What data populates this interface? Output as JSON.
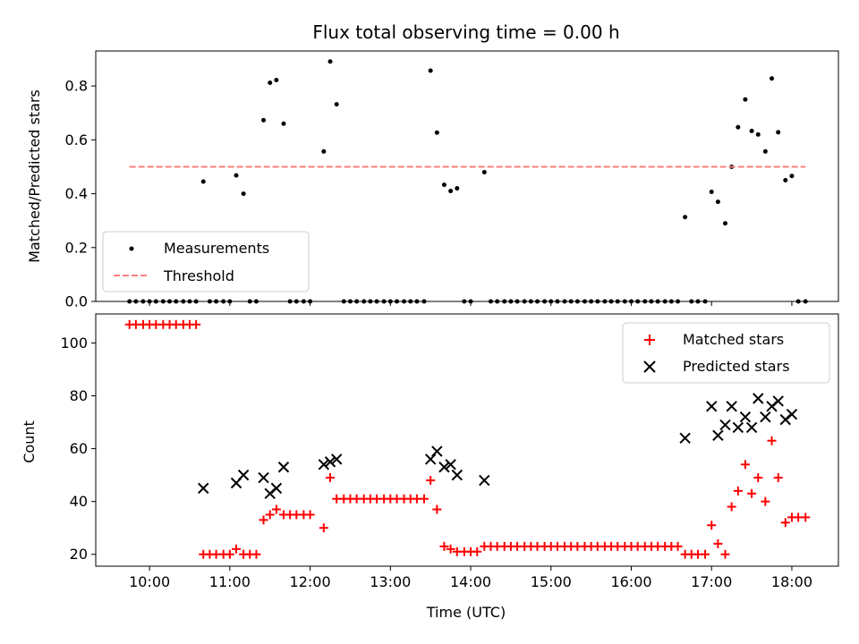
{
  "chart_data": [
    {
      "type": "scatter",
      "title": "Flux total observing time = 0.00 h",
      "xlabel": "",
      "ylabel": "Matched/Predicted stars",
      "xlim": [
        9.33,
        18.58
      ],
      "ylim": [
        0,
        0.93
      ],
      "yticks": [
        0.0,
        0.2,
        0.4,
        0.6,
        0.8
      ],
      "ytick_labels": [
        "0.0",
        "0.2",
        "0.4",
        "0.6",
        "0.8"
      ],
      "legend_position": "lower-left",
      "series": [
        {
          "name": "Measurements",
          "marker": "dot",
          "color": "#000000",
          "points": [
            [
              9.75,
              0
            ],
            [
              9.83,
              0
            ],
            [
              9.92,
              0
            ],
            [
              10.0,
              0
            ],
            [
              10.08,
              0
            ],
            [
              10.17,
              0
            ],
            [
              10.25,
              0
            ],
            [
              10.33,
              0
            ],
            [
              10.42,
              0
            ],
            [
              10.5,
              0
            ],
            [
              10.58,
              0
            ],
            [
              10.67,
              0.445
            ],
            [
              10.75,
              0
            ],
            [
              10.83,
              0
            ],
            [
              10.92,
              0
            ],
            [
              11.0,
              0
            ],
            [
              11.08,
              0.468
            ],
            [
              11.17,
              0.4
            ],
            [
              11.25,
              0
            ],
            [
              11.33,
              0
            ],
            [
              11.42,
              0.673
            ],
            [
              11.5,
              0.812
            ],
            [
              11.58,
              0.822
            ],
            [
              11.67,
              0.66
            ],
            [
              11.75,
              0
            ],
            [
              11.83,
              0
            ],
            [
              11.92,
              0
            ],
            [
              12.0,
              0
            ],
            [
              12.17,
              0.557
            ],
            [
              12.25,
              0.891
            ],
            [
              12.33,
              0.732
            ],
            [
              12.42,
              0
            ],
            [
              12.5,
              0
            ],
            [
              12.58,
              0
            ],
            [
              12.67,
              0
            ],
            [
              12.75,
              0
            ],
            [
              12.83,
              0
            ],
            [
              12.92,
              0
            ],
            [
              13.0,
              0
            ],
            [
              13.08,
              0
            ],
            [
              13.17,
              0
            ],
            [
              13.25,
              0
            ],
            [
              13.33,
              0
            ],
            [
              13.42,
              0
            ],
            [
              13.5,
              0.857
            ],
            [
              13.58,
              0.627
            ],
            [
              13.67,
              0.433
            ],
            [
              13.75,
              0.41
            ],
            [
              13.83,
              0.42
            ],
            [
              13.92,
              0
            ],
            [
              14.0,
              0
            ],
            [
              14.17,
              0.48
            ],
            [
              14.25,
              0
            ],
            [
              14.33,
              0
            ],
            [
              14.42,
              0
            ],
            [
              14.5,
              0
            ],
            [
              14.58,
              0
            ],
            [
              14.67,
              0
            ],
            [
              14.75,
              0
            ],
            [
              14.83,
              0
            ],
            [
              14.92,
              0
            ],
            [
              15.0,
              0
            ],
            [
              15.08,
              0
            ],
            [
              15.17,
              0
            ],
            [
              15.25,
              0
            ],
            [
              15.33,
              0
            ],
            [
              15.42,
              0
            ],
            [
              15.5,
              0
            ],
            [
              15.58,
              0
            ],
            [
              15.67,
              0
            ],
            [
              15.75,
              0
            ],
            [
              15.83,
              0
            ],
            [
              15.92,
              0
            ],
            [
              16.0,
              0
            ],
            [
              16.08,
              0
            ],
            [
              16.17,
              0
            ],
            [
              16.25,
              0
            ],
            [
              16.33,
              0
            ],
            [
              16.42,
              0
            ],
            [
              16.5,
              0
            ],
            [
              16.58,
              0
            ],
            [
              16.67,
              0.313
            ],
            [
              16.75,
              0
            ],
            [
              16.83,
              0
            ],
            [
              16.92,
              0
            ],
            [
              17.0,
              0.407
            ],
            [
              17.08,
              0.37
            ],
            [
              17.17,
              0.29
            ],
            [
              17.25,
              0.5
            ],
            [
              17.33,
              0.647
            ],
            [
              17.42,
              0.75
            ],
            [
              17.5,
              0.633
            ],
            [
              17.58,
              0.62
            ],
            [
              17.67,
              0.557
            ],
            [
              17.75,
              0.828
            ],
            [
              17.83,
              0.628
            ],
            [
              17.92,
              0.45
            ],
            [
              18.0,
              0.466
            ],
            [
              18.08,
              0
            ],
            [
              18.17,
              0
            ]
          ]
        },
        {
          "name": "Threshold",
          "marker": "dashed-line",
          "color": "#ff7f7f",
          "points": [
            [
              9.75,
              0.5
            ],
            [
              18.17,
              0.5
            ]
          ]
        }
      ]
    },
    {
      "type": "scatter",
      "title": "",
      "xlabel": "Time (UTC)",
      "ylabel": "Count",
      "xlim": [
        9.33,
        18.58
      ],
      "ylim": [
        15.5,
        111
      ],
      "yticks": [
        20,
        40,
        60,
        80,
        100
      ],
      "ytick_labels": [
        "20",
        "40",
        "60",
        "80",
        "100"
      ],
      "xticks": [
        10,
        11,
        12,
        13,
        14,
        15,
        16,
        17,
        18
      ],
      "xtick_labels": [
        "10:00",
        "11:00",
        "12:00",
        "13:00",
        "14:00",
        "15:00",
        "16:00",
        "17:00",
        "18:00"
      ],
      "legend_position": "upper-right",
      "series": [
        {
          "name": "Matched stars",
          "marker": "plus",
          "color": "#ff0000",
          "points": [
            [
              9.75,
              107
            ],
            [
              9.83,
              107
            ],
            [
              9.92,
              107
            ],
            [
              10.0,
              107
            ],
            [
              10.08,
              107
            ],
            [
              10.17,
              107
            ],
            [
              10.25,
              107
            ],
            [
              10.33,
              107
            ],
            [
              10.42,
              107
            ],
            [
              10.5,
              107
            ],
            [
              10.58,
              107
            ],
            [
              10.67,
              20
            ],
            [
              10.75,
              20
            ],
            [
              10.83,
              20
            ],
            [
              10.92,
              20
            ],
            [
              11.0,
              20
            ],
            [
              11.08,
              22
            ],
            [
              11.17,
              20
            ],
            [
              11.25,
              20
            ],
            [
              11.33,
              20
            ],
            [
              11.42,
              33
            ],
            [
              11.5,
              35
            ],
            [
              11.58,
              37
            ],
            [
              11.67,
              35
            ],
            [
              11.75,
              35
            ],
            [
              11.83,
              35
            ],
            [
              11.92,
              35
            ],
            [
              12.0,
              35
            ],
            [
              12.17,
              30
            ],
            [
              12.25,
              49
            ],
            [
              12.33,
              41
            ],
            [
              12.42,
              41
            ],
            [
              12.5,
              41
            ],
            [
              12.58,
              41
            ],
            [
              12.67,
              41
            ],
            [
              12.75,
              41
            ],
            [
              12.83,
              41
            ],
            [
              12.92,
              41
            ],
            [
              13.0,
              41
            ],
            [
              13.08,
              41
            ],
            [
              13.17,
              41
            ],
            [
              13.25,
              41
            ],
            [
              13.33,
              41
            ],
            [
              13.42,
              41
            ],
            [
              13.5,
              48
            ],
            [
              13.58,
              37
            ],
            [
              13.67,
              23
            ],
            [
              13.75,
              22
            ],
            [
              13.83,
              21
            ],
            [
              13.92,
              21
            ],
            [
              14.0,
              21
            ],
            [
              14.08,
              21
            ],
            [
              14.17,
              23
            ],
            [
              14.25,
              23
            ],
            [
              14.33,
              23
            ],
            [
              14.42,
              23
            ],
            [
              14.5,
              23
            ],
            [
              14.58,
              23
            ],
            [
              14.67,
              23
            ],
            [
              14.75,
              23
            ],
            [
              14.83,
              23
            ],
            [
              14.92,
              23
            ],
            [
              15.0,
              23
            ],
            [
              15.08,
              23
            ],
            [
              15.17,
              23
            ],
            [
              15.25,
              23
            ],
            [
              15.33,
              23
            ],
            [
              15.42,
              23
            ],
            [
              15.5,
              23
            ],
            [
              15.58,
              23
            ],
            [
              15.67,
              23
            ],
            [
              15.75,
              23
            ],
            [
              15.83,
              23
            ],
            [
              15.92,
              23
            ],
            [
              16.0,
              23
            ],
            [
              16.08,
              23
            ],
            [
              16.17,
              23
            ],
            [
              16.25,
              23
            ],
            [
              16.33,
              23
            ],
            [
              16.42,
              23
            ],
            [
              16.5,
              23
            ],
            [
              16.58,
              23
            ],
            [
              16.67,
              20
            ],
            [
              16.75,
              20
            ],
            [
              16.83,
              20
            ],
            [
              16.92,
              20
            ],
            [
              17.0,
              31
            ],
            [
              17.08,
              24
            ],
            [
              17.17,
              20
            ],
            [
              17.25,
              38
            ],
            [
              17.33,
              44
            ],
            [
              17.42,
              54
            ],
            [
              17.5,
              43
            ],
            [
              17.58,
              49
            ],
            [
              17.67,
              40
            ],
            [
              17.75,
              63
            ],
            [
              17.83,
              49
            ],
            [
              17.92,
              32
            ],
            [
              18.0,
              34
            ],
            [
              18.08,
              34
            ],
            [
              18.17,
              34
            ]
          ]
        },
        {
          "name": "Predicted stars",
          "marker": "x",
          "color": "#000000",
          "points": [
            [
              10.67,
              45
            ],
            [
              11.08,
              47
            ],
            [
              11.17,
              50
            ],
            [
              11.42,
              49
            ],
            [
              11.5,
              43
            ],
            [
              11.58,
              45
            ],
            [
              11.67,
              53
            ],
            [
              12.17,
              54
            ],
            [
              12.25,
              55
            ],
            [
              12.33,
              56
            ],
            [
              13.5,
              56
            ],
            [
              13.58,
              59
            ],
            [
              13.67,
              53
            ],
            [
              13.75,
              54
            ],
            [
              13.83,
              50
            ],
            [
              14.17,
              48
            ],
            [
              16.67,
              64
            ],
            [
              17.0,
              76
            ],
            [
              17.08,
              65
            ],
            [
              17.17,
              69
            ],
            [
              17.25,
              76
            ],
            [
              17.33,
              68
            ],
            [
              17.42,
              72
            ],
            [
              17.5,
              68
            ],
            [
              17.58,
              79
            ],
            [
              17.67,
              72
            ],
            [
              17.75,
              76
            ],
            [
              17.83,
              78
            ],
            [
              17.92,
              71
            ],
            [
              18.0,
              73
            ]
          ]
        }
      ]
    }
  ]
}
